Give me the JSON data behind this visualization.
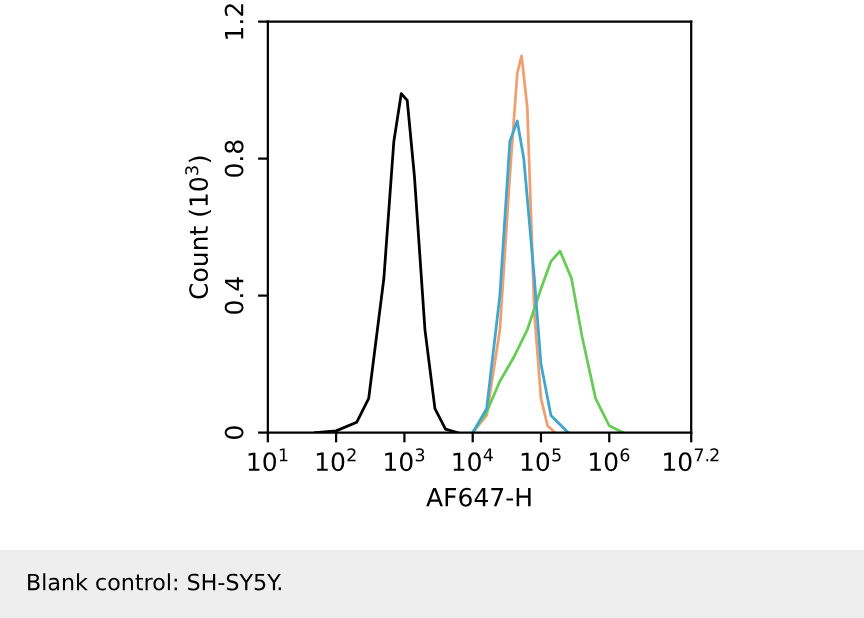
{
  "chart_data": {
    "type": "line",
    "xlabel": "AF647-H",
    "ylabel": "Count (10$^{3}$)",
    "log": "x",
    "grid": false,
    "legend": false,
    "marker": "none",
    "line_style": "solid",
    "xlim": [
      10,
      15848932
    ],
    "ylim": [
      0,
      1.2
    ],
    "xticks": [
      {
        "value": 10,
        "label": "10$^{1}$"
      },
      {
        "value": 100,
        "label": "10$^{2}$"
      },
      {
        "value": 1000,
        "label": "10$^{3}$"
      },
      {
        "value": 10000,
        "label": "10$^{4}$"
      },
      {
        "value": 100000,
        "label": "10$^{5}$"
      },
      {
        "value": 1000000,
        "label": "10$^{6}$"
      },
      {
        "value": 15848932,
        "label": "10$^{7.2}$"
      }
    ],
    "yticks": [
      0,
      0.4,
      0.8,
      1.2
    ],
    "annotations": [
      "Blank control: SH-SY5Y."
    ],
    "series": [
      {
        "color": "#000000",
        "x": [
          50,
          100,
          200,
          300,
          500,
          700,
          900,
          1100,
          1400,
          2000,
          2800,
          4000,
          6000
        ],
        "values": [
          0,
          0.005,
          0.03,
          0.1,
          0.45,
          0.85,
          0.99,
          0.97,
          0.75,
          0.3,
          0.07,
          0.01,
          0
        ]
      },
      {
        "color": "#f0a070",
        "x": [
          10000,
          16000,
          25000,
          35000,
          45000,
          52000,
          63000,
          80000,
          100000,
          125000,
          160000
        ],
        "values": [
          0,
          0.05,
          0.3,
          0.75,
          1.05,
          1.1,
          0.95,
          0.35,
          0.1,
          0.02,
          0
        ]
      },
      {
        "color": "#66cc55",
        "x": [
          10000,
          16000,
          25000,
          40000,
          63000,
          100000,
          140000,
          190000,
          280000,
          400000,
          630000,
          1000000,
          1600000
        ],
        "values": [
          0,
          0.06,
          0.15,
          0.22,
          0.3,
          0.42,
          0.5,
          0.53,
          0.45,
          0.28,
          0.1,
          0.02,
          0
        ]
      },
      {
        "color": "#3fa6d0",
        "x": [
          10000,
          16000,
          25000,
          35000,
          45000,
          56000,
          80000,
          100000,
          140000,
          250000
        ],
        "values": [
          0,
          0.07,
          0.4,
          0.85,
          0.91,
          0.8,
          0.45,
          0.2,
          0.05,
          0
        ]
      }
    ]
  }
}
